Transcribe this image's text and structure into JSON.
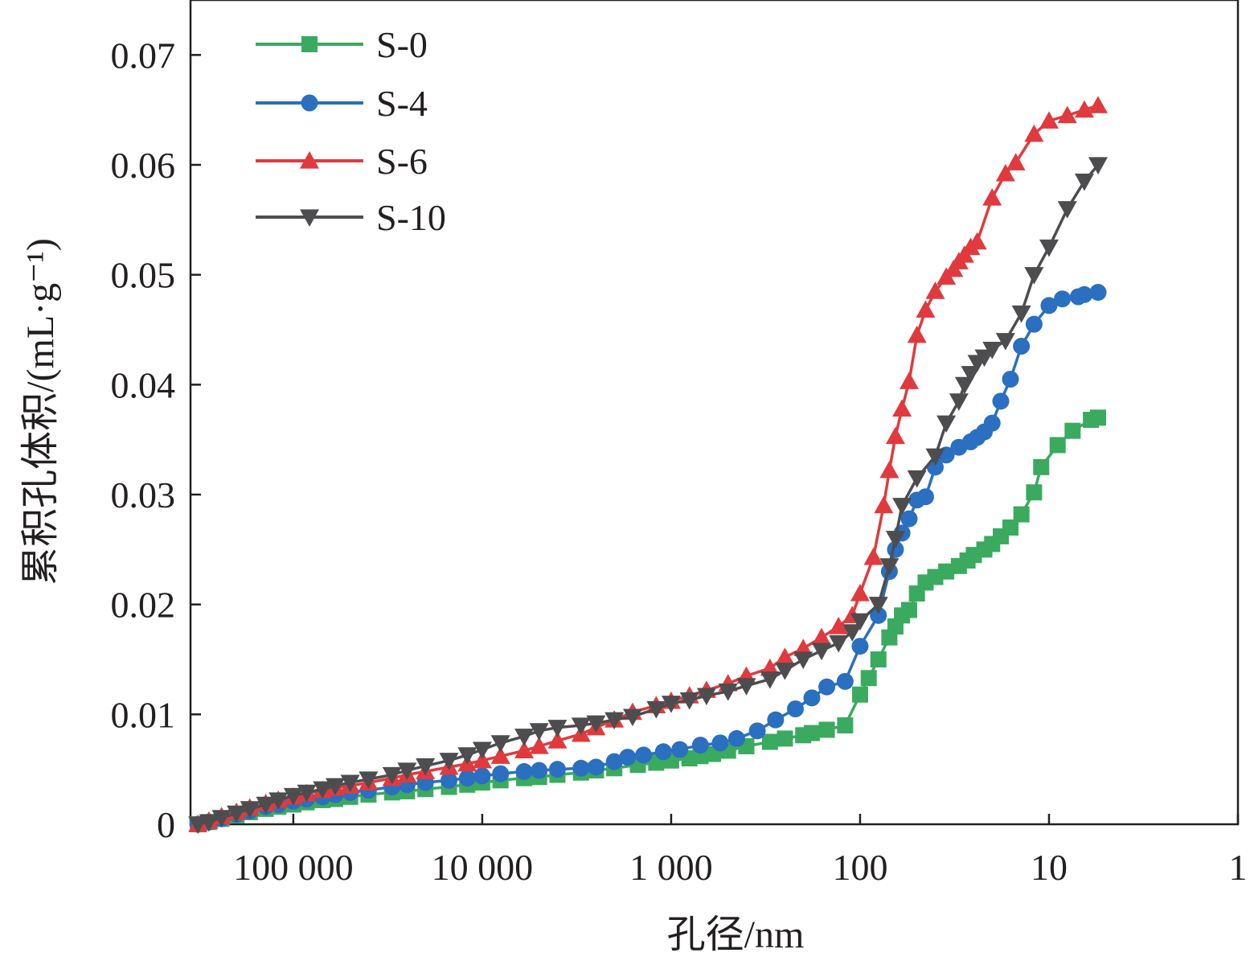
{
  "chart_data": {
    "type": "line",
    "xlabel": "孔径/nm",
    "ylabel": "累积孔体积/(mL·g⁻¹)",
    "x_scale": "log",
    "x_reversed": true,
    "xlim": [
      350000,
      1
    ],
    "ylim": [
      0,
      0.075
    ],
    "x_ticks": [
      100000,
      10000,
      1000,
      100,
      10,
      1
    ],
    "x_tick_labels": [
      "100 000",
      "10 000",
      "1 000",
      "100",
      "10",
      "1"
    ],
    "y_ticks": [
      0,
      0.01,
      0.02,
      0.03,
      0.04,
      0.05,
      0.06,
      0.07
    ],
    "y_tick_labels": [
      "0",
      "0.01",
      "0.02",
      "0.03",
      "0.04",
      "0.05",
      "0.06",
      "0.07"
    ],
    "grid": false,
    "legend_position": "top-left",
    "series": [
      {
        "name": "S-0",
        "color": "#3aaa5f",
        "marker": "square",
        "x": [
          320000,
          280000,
          240000,
          200000,
          170000,
          140000,
          120000,
          100000,
          85000,
          70000,
          60000,
          50000,
          40000,
          30000,
          25000,
          20000,
          15000,
          12000,
          10000,
          8000,
          6000,
          5000,
          4000,
          3000,
          2500,
          2000,
          1500,
          1200,
          1000,
          800,
          700,
          600,
          500,
          400,
          300,
          250,
          200,
          180,
          150,
          120,
          100,
          90,
          80,
          70,
          65,
          60,
          55,
          50,
          45,
          40,
          35,
          30,
          27,
          25,
          22,
          20,
          18,
          16,
          14,
          12,
          11,
          9,
          7.5,
          6,
          5.5
        ],
        "y": [
          0.0,
          0.0002,
          0.0005,
          0.0008,
          0.0011,
          0.0014,
          0.0016,
          0.0018,
          0.002,
          0.0022,
          0.0023,
          0.0025,
          0.0027,
          0.0029,
          0.003,
          0.0032,
          0.0034,
          0.0036,
          0.0038,
          0.004,
          0.0042,
          0.0043,
          0.0045,
          0.0047,
          0.0049,
          0.0051,
          0.0054,
          0.0056,
          0.0058,
          0.006,
          0.0062,
          0.0064,
          0.0067,
          0.0071,
          0.0075,
          0.0078,
          0.0081,
          0.0083,
          0.0086,
          0.009,
          0.0118,
          0.0133,
          0.015,
          0.017,
          0.018,
          0.019,
          0.0195,
          0.021,
          0.022,
          0.0225,
          0.023,
          0.0235,
          0.024,
          0.0245,
          0.025,
          0.0255,
          0.0262,
          0.027,
          0.0282,
          0.0302,
          0.0325,
          0.0345,
          0.0358,
          0.0368,
          0.037
        ]
      },
      {
        "name": "S-4",
        "color": "#2a6fc0",
        "marker": "circle",
        "x": [
          320000,
          280000,
          240000,
          200000,
          170000,
          140000,
          120000,
          100000,
          85000,
          70000,
          60000,
          50000,
          40000,
          30000,
          25000,
          20000,
          15000,
          12000,
          10000,
          8000,
          6000,
          5000,
          4000,
          3000,
          2500,
          2000,
          1700,
          1400,
          1100,
          900,
          700,
          550,
          450,
          350,
          280,
          220,
          180,
          150,
          120,
          100,
          80,
          70,
          65,
          60,
          55,
          50,
          45,
          40,
          35,
          30,
          26,
          24,
          22,
          20,
          18,
          16,
          14,
          12,
          10,
          8.5,
          7,
          6.5,
          5.5
        ],
        "y": [
          0.0,
          0.0002,
          0.0005,
          0.0009,
          0.0012,
          0.0016,
          0.0018,
          0.0021,
          0.0023,
          0.0025,
          0.0027,
          0.0029,
          0.0031,
          0.0034,
          0.0036,
          0.0038,
          0.004,
          0.0042,
          0.0044,
          0.0046,
          0.0048,
          0.0049,
          0.005,
          0.0051,
          0.0052,
          0.0057,
          0.0061,
          0.0063,
          0.0066,
          0.0068,
          0.0072,
          0.0074,
          0.0078,
          0.0085,
          0.0095,
          0.0105,
          0.0115,
          0.0125,
          0.013,
          0.0162,
          0.019,
          0.023,
          0.025,
          0.0265,
          0.0278,
          0.0295,
          0.0298,
          0.0325,
          0.0336,
          0.0343,
          0.0348,
          0.0352,
          0.0357,
          0.0365,
          0.0385,
          0.0405,
          0.0435,
          0.0455,
          0.0472,
          0.0478,
          0.048,
          0.0482,
          0.0484
        ]
      },
      {
        "name": "S-6",
        "color": "#e03a3e",
        "marker": "triangle-up",
        "x": [
          320000,
          280000,
          240000,
          200000,
          170000,
          140000,
          120000,
          100000,
          85000,
          70000,
          60000,
          50000,
          40000,
          30000,
          25000,
          20000,
          15000,
          12000,
          10000,
          8000,
          6000,
          5000,
          4000,
          3000,
          2500,
          2000,
          1600,
          1200,
          1000,
          800,
          650,
          500,
          400,
          300,
          250,
          200,
          160,
          130,
          110,
          100,
          85,
          75,
          70,
          65,
          60,
          55,
          50,
          45,
          40,
          35,
          32,
          30,
          28,
          26,
          24,
          20,
          17,
          15,
          12,
          10,
          8,
          6.5,
          5.5
        ],
        "y": [
          0.0,
          0.0003,
          0.0007,
          0.0011,
          0.0015,
          0.0019,
          0.0022,
          0.0025,
          0.0028,
          0.0031,
          0.0033,
          0.0035,
          0.0038,
          0.0042,
          0.0045,
          0.0048,
          0.0052,
          0.0055,
          0.0058,
          0.0062,
          0.0067,
          0.0071,
          0.0076,
          0.0082,
          0.0088,
          0.0095,
          0.0102,
          0.0108,
          0.0112,
          0.0117,
          0.0122,
          0.0128,
          0.0135,
          0.0142,
          0.0152,
          0.016,
          0.017,
          0.018,
          0.019,
          0.021,
          0.0243,
          0.029,
          0.0322,
          0.0353,
          0.0378,
          0.0403,
          0.0445,
          0.0468,
          0.0485,
          0.0498,
          0.0505,
          0.0512,
          0.0518,
          0.0525,
          0.053,
          0.057,
          0.0592,
          0.0602,
          0.0628,
          0.064,
          0.0645,
          0.065,
          0.0654
        ]
      },
      {
        "name": "S-10",
        "color": "#4d4d4f",
        "marker": "triangle-down",
        "x": [
          320000,
          280000,
          240000,
          200000,
          170000,
          140000,
          120000,
          100000,
          85000,
          70000,
          60000,
          50000,
          40000,
          30000,
          25000,
          20000,
          15000,
          12000,
          10000,
          8000,
          6000,
          5000,
          4000,
          3000,
          2500,
          2000,
          1600,
          1200,
          1000,
          800,
          650,
          500,
          400,
          300,
          250,
          200,
          160,
          130,
          110,
          100,
          80,
          70,
          65,
          60,
          50,
          40,
          35,
          30,
          28,
          26,
          24,
          22,
          20,
          17,
          14,
          12,
          10,
          8,
          6.5,
          5.5
        ],
        "y": [
          0.0,
          0.0002,
          0.0006,
          0.001,
          0.0014,
          0.0018,
          0.0022,
          0.0026,
          0.0029,
          0.0032,
          0.0035,
          0.0038,
          0.0041,
          0.0045,
          0.0049,
          0.0053,
          0.0058,
          0.0063,
          0.0068,
          0.0074,
          0.008,
          0.0085,
          0.0088,
          0.009,
          0.0092,
          0.0095,
          0.0098,
          0.0105,
          0.011,
          0.0113,
          0.0117,
          0.0121,
          0.0126,
          0.0132,
          0.014,
          0.015,
          0.0158,
          0.0165,
          0.0175,
          0.0185,
          0.02,
          0.0235,
          0.026,
          0.029,
          0.0315,
          0.0335,
          0.0365,
          0.0385,
          0.04,
          0.041,
          0.042,
          0.0425,
          0.0432,
          0.044,
          0.0465,
          0.05,
          0.0525,
          0.056,
          0.0585,
          0.06
        ]
      }
    ]
  }
}
